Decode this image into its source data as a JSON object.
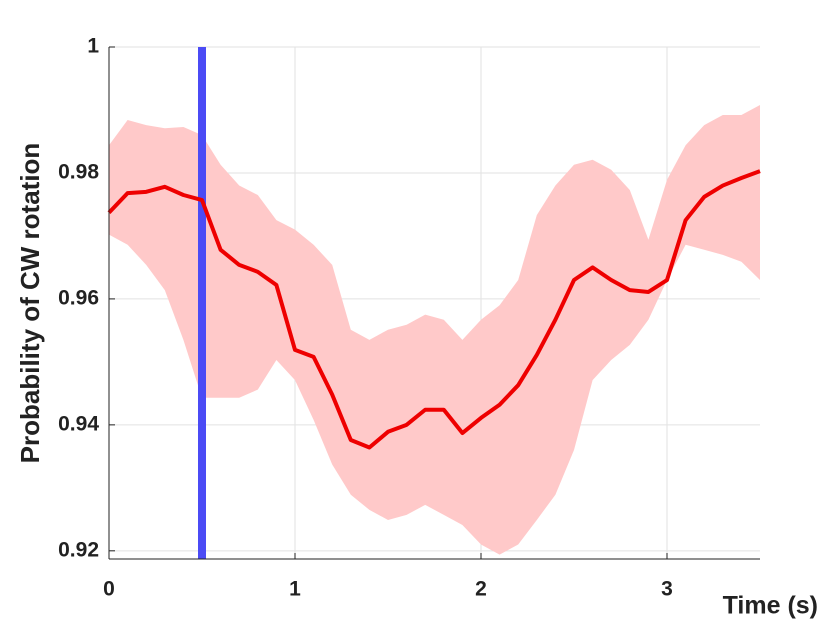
{
  "chart_data": {
    "type": "line",
    "xlabel": "Time (s)",
    "ylabel": "Probability of CW rotation",
    "x": [
      0,
      0.1,
      0.2,
      0.3,
      0.4,
      0.5,
      0.6,
      0.7,
      0.8,
      0.9,
      1.0,
      1.1,
      1.2,
      1.3,
      1.4,
      1.5,
      1.6,
      1.7,
      1.8,
      1.9,
      2.0,
      2.1,
      2.2,
      2.3,
      2.4,
      2.5,
      2.6,
      2.7,
      2.8,
      2.9,
      3.0,
      3.1,
      3.2,
      3.3,
      3.4,
      3.5
    ],
    "values": [
      0.9737,
      0.9768,
      0.977,
      0.9778,
      0.9765,
      0.9757,
      0.9678,
      0.9654,
      0.9643,
      0.9622,
      0.9519,
      0.9508,
      0.9448,
      0.9376,
      0.9364,
      0.9389,
      0.94,
      0.9424,
      0.9424,
      0.9387,
      0.9411,
      0.9432,
      0.9463,
      0.9511,
      0.9567,
      0.963,
      0.965,
      0.963,
      0.9614,
      0.9611,
      0.963,
      0.9725,
      0.9762,
      0.978,
      0.9792,
      0.9803
    ],
    "color": "#ee0000",
    "band": {
      "color": "#ffc9c9",
      "upper": [
        0.9844,
        0.9884,
        0.9876,
        0.9871,
        0.9873,
        0.986,
        0.9813,
        0.978,
        0.9765,
        0.9725,
        0.971,
        0.9686,
        0.9654,
        0.9551,
        0.9535,
        0.9551,
        0.9559,
        0.9575,
        0.9567,
        0.9535,
        0.9567,
        0.959,
        0.963,
        0.9733,
        0.978,
        0.9813,
        0.9821,
        0.9805,
        0.9773,
        0.9694,
        0.9789,
        0.9844,
        0.9876,
        0.9892,
        0.9892,
        0.9908
      ],
      "lower": [
        0.9702,
        0.9686,
        0.9654,
        0.9614,
        0.9535,
        0.9443,
        0.9443,
        0.9443,
        0.9456,
        0.9503,
        0.9471,
        0.9408,
        0.9337,
        0.9289,
        0.9265,
        0.9249,
        0.9257,
        0.9273,
        0.9257,
        0.9241,
        0.921,
        0.9194,
        0.921,
        0.9249,
        0.9289,
        0.936,
        0.9471,
        0.9503,
        0.9527,
        0.9567,
        0.963,
        0.9686,
        0.9678,
        0.967,
        0.9659,
        0.963
      ]
    },
    "vline": {
      "x": 0.5,
      "color": "#4b4bf5"
    },
    "xlim": [
      0,
      3.5
    ],
    "ylim": [
      0.9187,
      1
    ],
    "xticks": [
      0,
      1,
      2,
      3
    ],
    "yticks": [
      0.92,
      0.94,
      0.96,
      0.98,
      1
    ],
    "grid": true
  }
}
